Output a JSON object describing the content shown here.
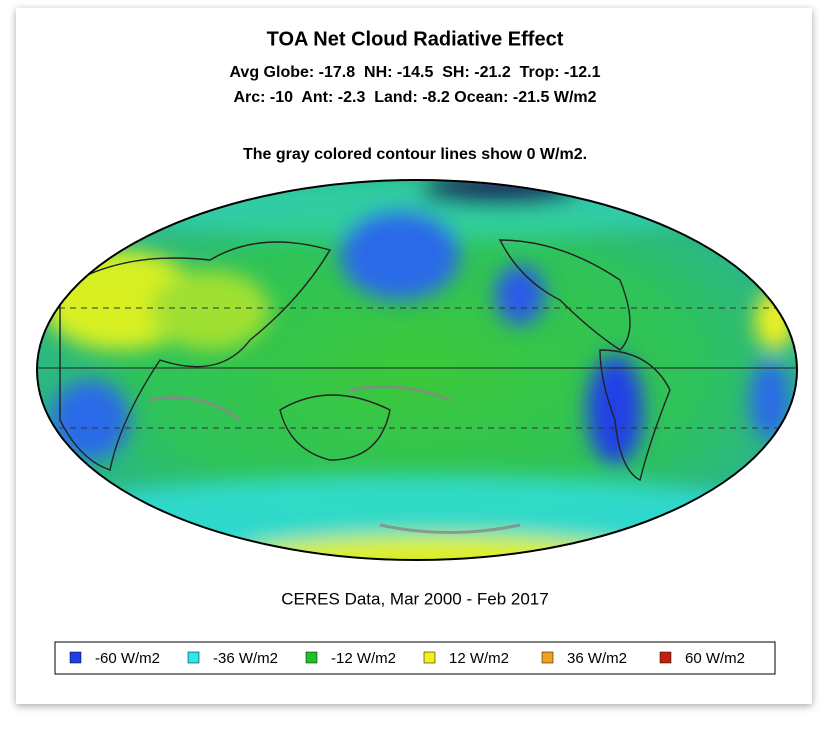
{
  "title": "TOA Net Cloud Radiative Effect",
  "stats": [
    "Avg Globe: -17.8  NH: -14.5  SH: -21.2  Trop: -12.1",
    "Arc: -10  Ant: -2.3  Land: -8.2 Ocean: -21.5 W/m2"
  ],
  "note": "The gray colored contour lines show 0 W/m2.",
  "source": "CERES Data, Mar 2000 - Feb 2017",
  "legend": [
    {
      "label": "-60 W/m2",
      "color": "#1f3fe6"
    },
    {
      "label": "-36 W/m2",
      "color": "#2ee6ee"
    },
    {
      "label": "-12 W/m2",
      "color": "#22c02a"
    },
    {
      "label": "12 W/m2",
      "color": "#f0f020"
    },
    {
      "label": "36 W/m2",
      "color": "#f0a020"
    },
    {
      "label": "60 W/m2",
      "color": "#c02010"
    }
  ]
}
